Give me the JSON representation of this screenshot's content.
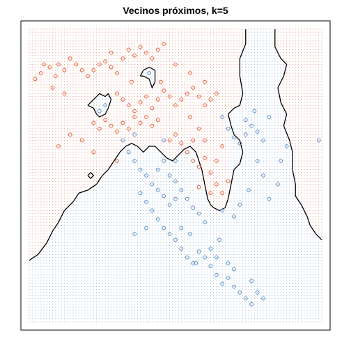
{
  "chart_data": {
    "type": "scatter",
    "title": "Vecinos próximos, k=5",
    "xlabel": "",
    "ylabel": "",
    "axes_shown": false,
    "xlim": [
      0,
      1
    ],
    "ylim": [
      0,
      1
    ],
    "grid": {
      "step": 0.01,
      "description": "dotted prediction grid colored by predicted class"
    },
    "classes": [
      {
        "name": "",
        "color": "#E8603C",
        "marker": "open-circle"
      },
      {
        "name": "",
        "color": "#5B8FC7",
        "marker": "open-circle"
      }
    ],
    "decision_boundary": {
      "color": "#000000",
      "left_curve": [
        [
          0.0,
          0.21
        ],
        [
          0.03,
          0.23
        ],
        [
          0.06,
          0.27
        ],
        [
          0.08,
          0.31
        ],
        [
          0.1,
          0.34
        ],
        [
          0.12,
          0.38
        ],
        [
          0.15,
          0.41
        ],
        [
          0.17,
          0.44
        ],
        [
          0.2,
          0.45
        ],
        [
          0.23,
          0.47
        ],
        [
          0.25,
          0.5
        ],
        [
          0.27,
          0.52
        ],
        [
          0.29,
          0.55
        ],
        [
          0.31,
          0.58
        ],
        [
          0.33,
          0.6
        ],
        [
          0.35,
          0.61
        ],
        [
          0.37,
          0.6
        ],
        [
          0.39,
          0.58
        ],
        [
          0.41,
          0.6
        ],
        [
          0.43,
          0.6
        ],
        [
          0.45,
          0.58
        ],
        [
          0.47,
          0.56
        ],
        [
          0.49,
          0.55
        ],
        [
          0.51,
          0.57
        ],
        [
          0.53,
          0.59
        ],
        [
          0.55,
          0.6
        ],
        [
          0.57,
          0.58
        ],
        [
          0.59,
          0.52
        ],
        [
          0.6,
          0.47
        ],
        [
          0.61,
          0.42
        ],
        [
          0.62,
          0.4
        ],
        [
          0.63,
          0.39
        ],
        [
          0.65,
          0.38
        ],
        [
          0.67,
          0.39
        ],
        [
          0.68,
          0.42
        ],
        [
          0.69,
          0.47
        ],
        [
          0.7,
          0.52
        ],
        [
          0.72,
          0.54
        ],
        [
          0.73,
          0.58
        ],
        [
          0.72,
          0.62
        ],
        [
          0.7,
          0.64
        ],
        [
          0.69,
          0.67
        ],
        [
          0.68,
          0.71
        ],
        [
          0.7,
          0.73
        ],
        [
          0.72,
          0.74
        ],
        [
          0.73,
          0.78
        ],
        [
          0.72,
          0.84
        ],
        [
          0.72,
          0.9
        ],
        [
          0.74,
          0.95
        ],
        [
          0.74,
          1.0
        ]
      ],
      "right_curve": [
        [
          0.84,
          1.0
        ],
        [
          0.84,
          0.94
        ],
        [
          0.86,
          0.9
        ],
        [
          0.88,
          0.88
        ],
        [
          0.87,
          0.84
        ],
        [
          0.85,
          0.8
        ],
        [
          0.86,
          0.75
        ],
        [
          0.88,
          0.71
        ],
        [
          0.87,
          0.67
        ],
        [
          0.89,
          0.62
        ],
        [
          0.9,
          0.58
        ],
        [
          0.9,
          0.52
        ],
        [
          0.91,
          0.47
        ],
        [
          0.91,
          0.43
        ],
        [
          0.93,
          0.4
        ],
        [
          0.95,
          0.36
        ],
        [
          0.96,
          0.33
        ],
        [
          0.98,
          0.3
        ],
        [
          1.0,
          0.28
        ]
      ],
      "islands": [
        [
          [
            0.2,
            0.74
          ],
          [
            0.22,
            0.76
          ],
          [
            0.24,
            0.78
          ],
          [
            0.26,
            0.77
          ],
          [
            0.27,
            0.78
          ],
          [
            0.28,
            0.76
          ],
          [
            0.27,
            0.73
          ],
          [
            0.26,
            0.71
          ],
          [
            0.24,
            0.7
          ],
          [
            0.23,
            0.71
          ],
          [
            0.22,
            0.73
          ],
          [
            0.2,
            0.74
          ]
        ],
        [
          [
            0.38,
            0.84
          ],
          [
            0.39,
            0.86
          ],
          [
            0.41,
            0.87
          ],
          [
            0.43,
            0.86
          ],
          [
            0.43,
            0.82
          ],
          [
            0.42,
            0.8
          ],
          [
            0.41,
            0.83
          ],
          [
            0.39,
            0.84
          ],
          [
            0.38,
            0.84
          ]
        ],
        [
          [
            0.2,
            0.5
          ],
          [
            0.21,
            0.51
          ],
          [
            0.22,
            0.5
          ],
          [
            0.21,
            0.49
          ],
          [
            0.2,
            0.5
          ]
        ]
      ]
    },
    "series": [
      {
        "class": 0,
        "points": [
          [
            0.02,
            0.83
          ],
          [
            0.04,
            0.85
          ],
          [
            0.05,
            0.88
          ],
          [
            0.07,
            0.87
          ],
          [
            0.09,
            0.84
          ],
          [
            0.1,
            0.88
          ],
          [
            0.12,
            0.86
          ],
          [
            0.14,
            0.9
          ],
          [
            0.16,
            0.88
          ],
          [
            0.18,
            0.86
          ],
          [
            0.2,
            0.84
          ],
          [
            0.22,
            0.86
          ],
          [
            0.24,
            0.88
          ],
          [
            0.26,
            0.89
          ],
          [
            0.28,
            0.87
          ],
          [
            0.3,
            0.85
          ],
          [
            0.32,
            0.9
          ],
          [
            0.34,
            0.93
          ],
          [
            0.36,
            0.91
          ],
          [
            0.38,
            0.94
          ],
          [
            0.4,
            0.92
          ],
          [
            0.42,
            0.9
          ],
          [
            0.44,
            0.93
          ],
          [
            0.46,
            0.95
          ],
          [
            0.3,
            0.78
          ],
          [
            0.32,
            0.76
          ],
          [
            0.34,
            0.74
          ],
          [
            0.36,
            0.72
          ],
          [
            0.38,
            0.75
          ],
          [
            0.4,
            0.77
          ],
          [
            0.42,
            0.73
          ],
          [
            0.44,
            0.76
          ],
          [
            0.46,
            0.79
          ],
          [
            0.48,
            0.77
          ],
          [
            0.5,
            0.74
          ],
          [
            0.52,
            0.76
          ],
          [
            0.54,
            0.78
          ],
          [
            0.56,
            0.8
          ],
          [
            0.58,
            0.77
          ],
          [
            0.6,
            0.74
          ],
          [
            0.62,
            0.76
          ],
          [
            0.64,
            0.78
          ],
          [
            0.22,
            0.68
          ],
          [
            0.24,
            0.66
          ],
          [
            0.26,
            0.69
          ],
          [
            0.28,
            0.67
          ],
          [
            0.3,
            0.65
          ],
          [
            0.32,
            0.68
          ],
          [
            0.34,
            0.66
          ],
          [
            0.36,
            0.7
          ],
          [
            0.38,
            0.68
          ],
          [
            0.4,
            0.7
          ],
          [
            0.42,
            0.67
          ],
          [
            0.44,
            0.69
          ],
          [
            0.48,
            0.62
          ],
          [
            0.5,
            0.64
          ],
          [
            0.52,
            0.61
          ],
          [
            0.54,
            0.58
          ],
          [
            0.56,
            0.55
          ],
          [
            0.58,
            0.53
          ],
          [
            0.6,
            0.56
          ],
          [
            0.62,
            0.51
          ],
          [
            0.64,
            0.47
          ],
          [
            0.66,
            0.44
          ],
          [
            0.68,
            0.48
          ],
          [
            0.56,
            0.62
          ],
          [
            0.6,
            0.62
          ],
          [
            0.1,
            0.6
          ],
          [
            0.14,
            0.64
          ],
          [
            0.18,
            0.62
          ],
          [
            0.22,
            0.58
          ],
          [
            0.6,
            0.82
          ],
          [
            0.55,
            0.85
          ],
          [
            0.5,
            0.88
          ],
          [
            0.45,
            0.82
          ],
          [
            0.35,
            0.82
          ],
          [
            0.28,
            0.92
          ],
          [
            0.08,
            0.8
          ],
          [
            0.12,
            0.78
          ],
          [
            0.55,
            0.7
          ],
          [
            0.58,
            0.66
          ],
          [
            0.66,
            0.6
          ],
          [
            0.64,
            0.55
          ],
          [
            0.62,
            0.44
          ],
          [
            0.58,
            0.46
          ],
          [
            0.3,
            0.55
          ]
        ]
      },
      {
        "class": 1,
        "points": [
          [
            0.24,
            0.72
          ],
          [
            0.26,
            0.74
          ],
          [
            0.41,
            0.85
          ],
          [
            0.34,
            0.58
          ],
          [
            0.36,
            0.55
          ],
          [
            0.38,
            0.52
          ],
          [
            0.4,
            0.5
          ],
          [
            0.42,
            0.47
          ],
          [
            0.44,
            0.45
          ],
          [
            0.46,
            0.43
          ],
          [
            0.48,
            0.4
          ],
          [
            0.5,
            0.42
          ],
          [
            0.52,
            0.45
          ],
          [
            0.54,
            0.42
          ],
          [
            0.56,
            0.39
          ],
          [
            0.58,
            0.37
          ],
          [
            0.44,
            0.52
          ],
          [
            0.46,
            0.55
          ],
          [
            0.48,
            0.5
          ],
          [
            0.5,
            0.48
          ],
          [
            0.38,
            0.44
          ],
          [
            0.4,
            0.41
          ],
          [
            0.42,
            0.38
          ],
          [
            0.44,
            0.35
          ],
          [
            0.46,
            0.32
          ],
          [
            0.48,
            0.3
          ],
          [
            0.5,
            0.28
          ],
          [
            0.52,
            0.25
          ],
          [
            0.54,
            0.22
          ],
          [
            0.56,
            0.2
          ],
          [
            0.58,
            0.24
          ],
          [
            0.6,
            0.22
          ],
          [
            0.62,
            0.19
          ],
          [
            0.64,
            0.16
          ],
          [
            0.66,
            0.13
          ],
          [
            0.68,
            0.15
          ],
          [
            0.7,
            0.12
          ],
          [
            0.72,
            0.1
          ],
          [
            0.74,
            0.08
          ],
          [
            0.76,
            0.06
          ],
          [
            0.66,
            0.7
          ],
          [
            0.68,
            0.66
          ],
          [
            0.7,
            0.63
          ],
          [
            0.72,
            0.61
          ],
          [
            0.74,
            0.64
          ],
          [
            0.76,
            0.67
          ],
          [
            0.78,
            0.65
          ],
          [
            0.8,
            0.62
          ],
          [
            0.82,
            0.7
          ],
          [
            0.77,
            0.72
          ],
          [
            0.74,
            0.69
          ],
          [
            0.78,
            0.55
          ],
          [
            0.8,
            0.5
          ],
          [
            0.75,
            0.45
          ],
          [
            0.72,
            0.4
          ],
          [
            0.82,
            0.42
          ],
          [
            0.85,
            0.47
          ],
          [
            0.86,
            0.55
          ],
          [
            0.99,
            0.62
          ],
          [
            0.88,
            0.6
          ],
          [
            0.65,
            0.28
          ],
          [
            0.62,
            0.25
          ],
          [
            0.55,
            0.3
          ],
          [
            0.52,
            0.32
          ],
          [
            0.6,
            0.34
          ],
          [
            0.57,
            0.2
          ],
          [
            0.64,
            0.22
          ],
          [
            0.68,
            0.2
          ],
          [
            0.7,
            0.18
          ],
          [
            0.76,
            0.14
          ],
          [
            0.78,
            0.1
          ],
          [
            0.8,
            0.08
          ],
          [
            0.36,
            0.3
          ],
          [
            0.4,
            0.32
          ],
          [
            0.66,
            0.38
          ],
          [
            0.7,
            0.36
          ],
          [
            0.46,
            0.62
          ],
          [
            0.5,
            0.55
          ],
          [
            0.32,
            0.62
          ],
          [
            0.36,
            0.64
          ]
        ]
      }
    ]
  }
}
